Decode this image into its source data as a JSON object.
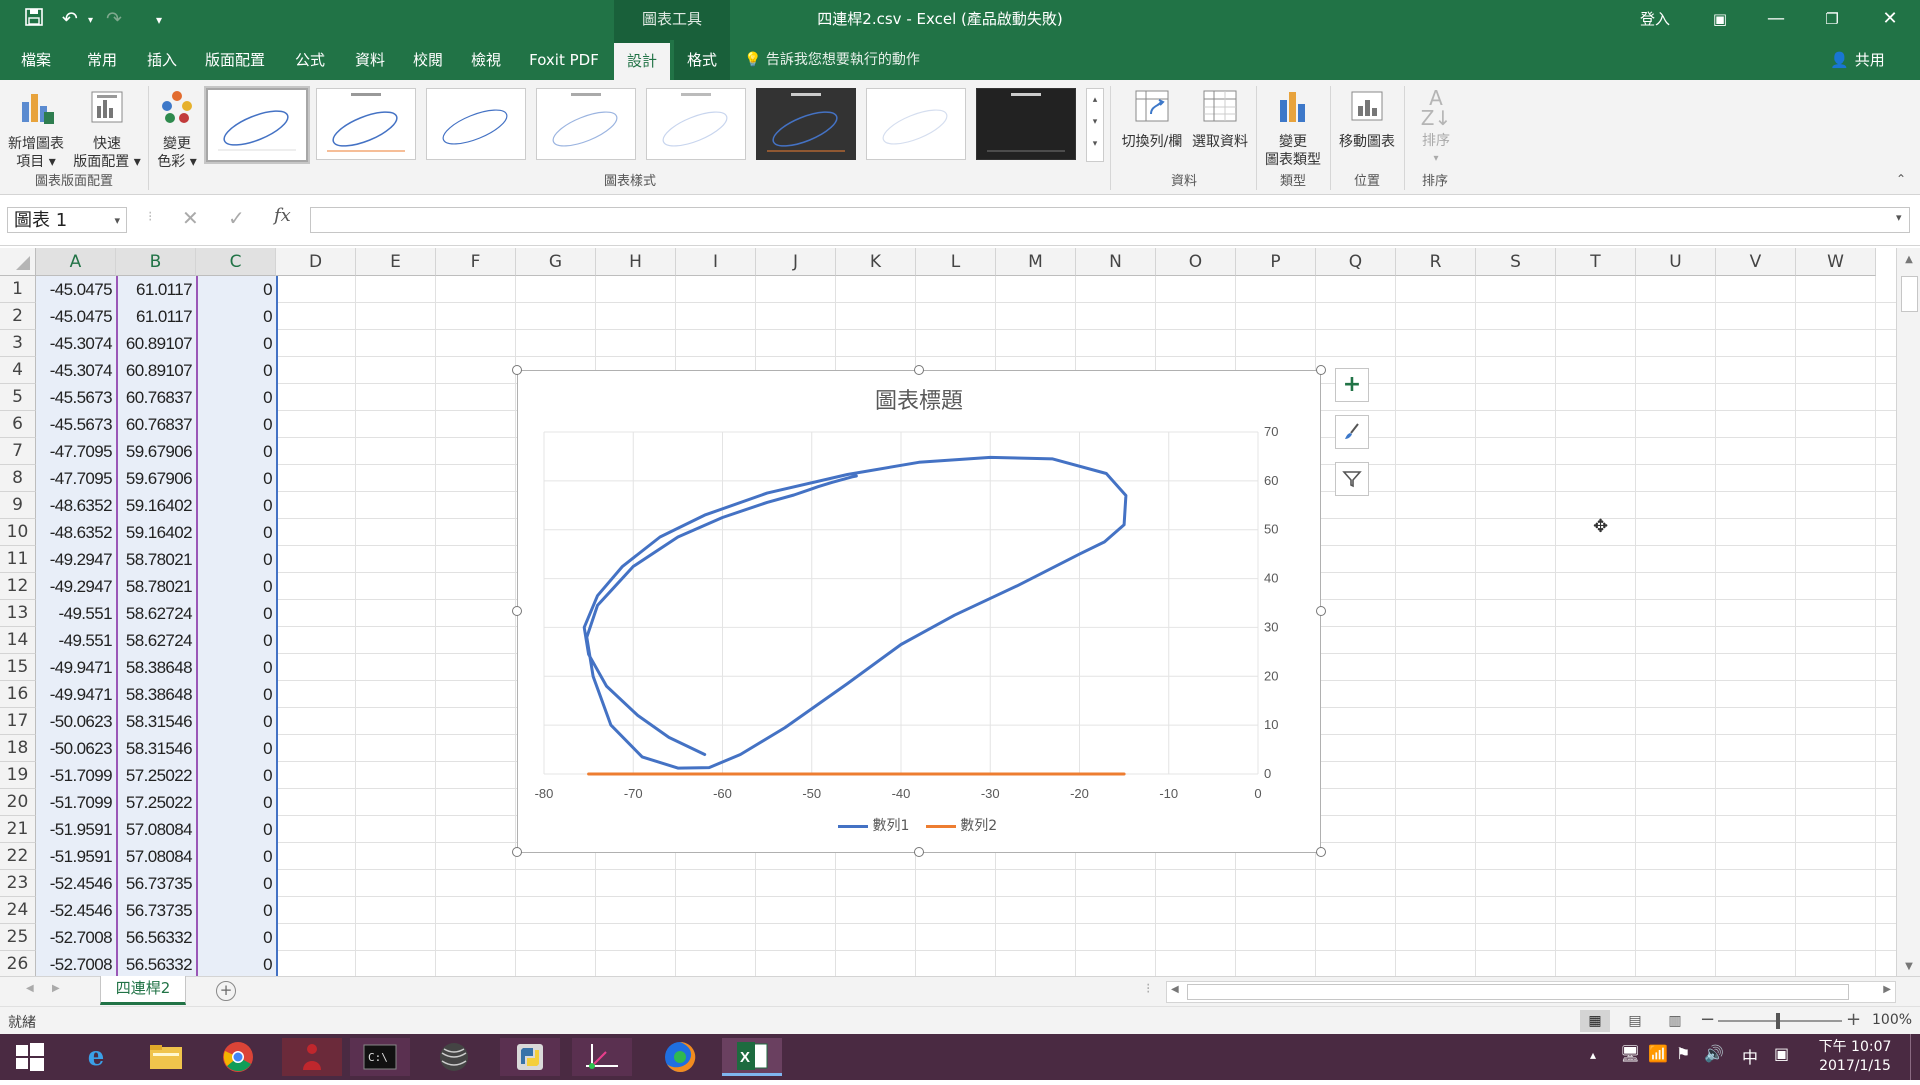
{
  "window": {
    "title": "四連桿2.csv  -  Excel (產品啟動失敗)",
    "context_tools": "圖表工具",
    "signin": "登入",
    "share": "共用"
  },
  "tabs": [
    "檔案",
    "常用",
    "插入",
    "版面配置",
    "公式",
    "資料",
    "校閱",
    "檢視",
    "Foxit PDF",
    "設計",
    "格式"
  ],
  "active_tab": "設計",
  "tell_me": "告訴我您想要執行的動作",
  "ribbon": {
    "add_element": [
      "新增圖表",
      "項目"
    ],
    "quick_layout": [
      "快速",
      "版面配置"
    ],
    "change_colors": [
      "變更",
      "色彩"
    ],
    "group_layouts": "圖表版面配置",
    "group_styles": "圖表樣式",
    "switch_row_col": "切換列/欄",
    "select_data": "選取資料",
    "group_data": "資料",
    "change_type": [
      "變更",
      "圖表類型"
    ],
    "group_type": "類型",
    "move_chart": "移動圖表",
    "group_location": "位置",
    "sort": "排序",
    "group_sort": "排序"
  },
  "formula_bar": {
    "name_box": "圖表 1",
    "fx": "fx"
  },
  "columns": [
    "A",
    "B",
    "C",
    "D",
    "E",
    "F",
    "G",
    "H",
    "I",
    "J",
    "K",
    "L",
    "M",
    "N",
    "O",
    "P",
    "Q",
    "R",
    "S",
    "T",
    "U",
    "V",
    "W"
  ],
  "rows": [
    {
      "n": "1",
      "a": "-45.0475",
      "b": "61.0117",
      "c": "0"
    },
    {
      "n": "2",
      "a": "-45.0475",
      "b": "61.0117",
      "c": "0"
    },
    {
      "n": "3",
      "a": "-45.3074",
      "b": "60.89107",
      "c": "0"
    },
    {
      "n": "4",
      "a": "-45.3074",
      "b": "60.89107",
      "c": "0"
    },
    {
      "n": "5",
      "a": "-45.5673",
      "b": "60.76837",
      "c": "0"
    },
    {
      "n": "6",
      "a": "-45.5673",
      "b": "60.76837",
      "c": "0"
    },
    {
      "n": "7",
      "a": "-47.7095",
      "b": "59.67906",
      "c": "0"
    },
    {
      "n": "8",
      "a": "-47.7095",
      "b": "59.67906",
      "c": "0"
    },
    {
      "n": "9",
      "a": "-48.6352",
      "b": "59.16402",
      "c": "0"
    },
    {
      "n": "10",
      "a": "-48.6352",
      "b": "59.16402",
      "c": "0"
    },
    {
      "n": "11",
      "a": "-49.2947",
      "b": "58.78021",
      "c": "0"
    },
    {
      "n": "12",
      "a": "-49.2947",
      "b": "58.78021",
      "c": "0"
    },
    {
      "n": "13",
      "a": "-49.551",
      "b": "58.62724",
      "c": "0"
    },
    {
      "n": "14",
      "a": "-49.551",
      "b": "58.62724",
      "c": "0"
    },
    {
      "n": "15",
      "a": "-49.9471",
      "b": "58.38648",
      "c": "0"
    },
    {
      "n": "16",
      "a": "-49.9471",
      "b": "58.38648",
      "c": "0"
    },
    {
      "n": "17",
      "a": "-50.0623",
      "b": "58.31546",
      "c": "0"
    },
    {
      "n": "18",
      "a": "-50.0623",
      "b": "58.31546",
      "c": "0"
    },
    {
      "n": "19",
      "a": "-51.7099",
      "b": "57.25022",
      "c": "0"
    },
    {
      "n": "20",
      "a": "-51.7099",
      "b": "57.25022",
      "c": "0"
    },
    {
      "n": "21",
      "a": "-51.9591",
      "b": "57.08084",
      "c": "0"
    },
    {
      "n": "22",
      "a": "-51.9591",
      "b": "57.08084",
      "c": "0"
    },
    {
      "n": "23",
      "a": "-52.4546",
      "b": "56.73735",
      "c": "0"
    },
    {
      "n": "24",
      "a": "-52.4546",
      "b": "56.73735",
      "c": "0"
    },
    {
      "n": "25",
      "a": "-52.7008",
      "b": "56.56332",
      "c": "0"
    },
    {
      "n": "26",
      "a": "-52.7008",
      "b": "56.56332",
      "c": "0"
    }
  ],
  "chart_data": {
    "type": "scatter",
    "title": "圖表標題",
    "xlim": [
      -80,
      0
    ],
    "ylim": [
      0,
      70
    ],
    "x_ticks": [
      "-80",
      "-70",
      "-60",
      "-50",
      "-40",
      "-30",
      "-20",
      "-10",
      "0"
    ],
    "y_ticks": [
      "0",
      "10",
      "20",
      "30",
      "40",
      "50",
      "60",
      "70"
    ],
    "y_axis_position": "right",
    "grid": true,
    "legend_position": "bottom",
    "series": [
      {
        "name": "數列1",
        "color": "#4472c4",
        "x": [
          -45.0,
          -45.5,
          -47.7,
          -49.3,
          -50.1,
          -52.0,
          -55,
          -60,
          -65,
          -70,
          -72.5,
          -74,
          -75.2,
          -74.5,
          -72.5,
          -69,
          -65,
          -61.5,
          -58,
          -53,
          -46,
          -40,
          -34,
          -27,
          -20,
          -17.2,
          -15,
          -14.8,
          -17,
          -23,
          -30,
          -38,
          -46,
          -55,
          -62,
          -67,
          -71.2,
          -74,
          -75.5,
          -75,
          -73,
          -69.5,
          -66,
          -62
        ],
        "y": [
          61.0,
          60.8,
          59.7,
          58.8,
          58.3,
          57.1,
          55.6,
          52.5,
          48.5,
          42.5,
          37.5,
          34.5,
          28,
          20,
          10,
          3.5,
          1.2,
          1.3,
          4,
          9.5,
          18.5,
          26.5,
          32.5,
          38.5,
          45,
          47.5,
          51,
          57,
          61.5,
          64.5,
          64.8,
          63.8,
          61.3,
          57.5,
          53,
          48.5,
          42.5,
          36.5,
          30,
          24.5,
          18,
          12,
          7.5,
          4
        ]
      },
      {
        "name": "數列2",
        "color": "#ed7d31",
        "x": [
          -75,
          -15
        ],
        "y": [
          0,
          0
        ]
      }
    ]
  },
  "sheet_tab": "四連桿2",
  "status": {
    "ready": "就緒",
    "zoom": "100%"
  },
  "clock": {
    "time": "下午 10:07",
    "date": "2017/1/15"
  },
  "ime": "中"
}
